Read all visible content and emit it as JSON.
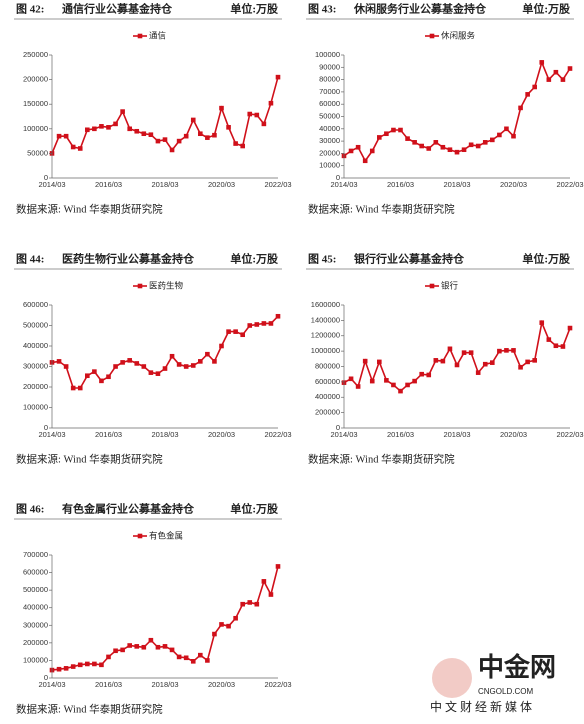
{
  "chart_data": [
    {
      "type": "line",
      "figure": "图 42:",
      "title": "通信行业公募基金持仓",
      "unit": "单位:万股",
      "source": "数据来源: Wind 华泰期货研究院",
      "legend": "top",
      "categories": [
        "2014/03",
        null,
        null,
        null,
        null,
        null,
        null,
        null,
        "2016/03",
        null,
        null,
        null,
        null,
        null,
        null,
        null,
        "2018/03",
        null,
        null,
        null,
        null,
        null,
        null,
        null,
        "2020/03",
        null,
        null,
        null,
        null,
        null,
        null,
        null,
        "2022/03"
      ],
      "series": [
        {
          "name": "通信",
          "color": "#d0101a",
          "values": [
            50000,
            85000,
            85000,
            63000,
            60000,
            98000,
            100000,
            105000,
            103000,
            110000,
            135000,
            100000,
            95000,
            90000,
            88000,
            75000,
            78000,
            57000,
            75000,
            85000,
            118000,
            90000,
            82000,
            87000,
            142000,
            103000,
            70000,
            65000,
            130000,
            128000,
            110000,
            152000,
            205000
          ]
        }
      ],
      "ylim": [
        0,
        250000
      ],
      "yticks": [
        0,
        50000,
        100000,
        150000,
        200000,
        250000
      ]
    },
    {
      "type": "line",
      "figure": "图 43:",
      "title": "休闲服务行业公募基金持仓",
      "unit": "单位:万股",
      "source": "数据来源: Wind 华泰期货研究院",
      "legend": "top",
      "categories": [
        "2014/03",
        null,
        null,
        null,
        null,
        null,
        null,
        null,
        "2016/03",
        null,
        null,
        null,
        null,
        null,
        null,
        null,
        "2018/03",
        null,
        null,
        null,
        null,
        null,
        null,
        null,
        "2020/03",
        null,
        null,
        null,
        null,
        null,
        null,
        null,
        "2022/03"
      ],
      "series": [
        {
          "name": "休闲服务",
          "color": "#d0101a",
          "values": [
            18000,
            22000,
            25000,
            14000,
            22000,
            33000,
            36000,
            39000,
            39000,
            32000,
            29000,
            26000,
            24000,
            29000,
            25000,
            23000,
            21000,
            23000,
            27000,
            26000,
            29000,
            31000,
            35000,
            40000,
            34000,
            57000,
            68000,
            74000,
            94000,
            80000,
            86000,
            80000,
            89000
          ]
        }
      ],
      "ylim": [
        0,
        100000
      ],
      "yticks": [
        0,
        10000,
        20000,
        30000,
        40000,
        50000,
        60000,
        70000,
        80000,
        90000,
        100000
      ]
    },
    {
      "type": "line",
      "figure": "图 44:",
      "title": "医药生物行业公募基金持仓",
      "unit": "单位:万股",
      "source": "数据来源: Wind 华泰期货研究院",
      "legend": "top",
      "categories": [
        "2014/03",
        null,
        null,
        null,
        null,
        null,
        null,
        null,
        "2016/03",
        null,
        null,
        null,
        null,
        null,
        null,
        null,
        "2018/03",
        null,
        null,
        null,
        null,
        null,
        null,
        null,
        "2020/03",
        null,
        null,
        null,
        null,
        null,
        null,
        null,
        "2022/03"
      ],
      "series": [
        {
          "name": "医药生物",
          "color": "#d0101a",
          "values": [
            320000,
            325000,
            300000,
            195000,
            195000,
            255000,
            275000,
            230000,
            250000,
            300000,
            320000,
            330000,
            315000,
            300000,
            270000,
            265000,
            290000,
            350000,
            310000,
            300000,
            305000,
            325000,
            360000,
            325000,
            400000,
            470000,
            470000,
            455000,
            500000,
            505000,
            510000,
            510000,
            545000
          ]
        }
      ],
      "ylim": [
        0,
        600000
      ],
      "yticks": [
        0,
        100000,
        200000,
        300000,
        400000,
        500000,
        600000
      ]
    },
    {
      "type": "line",
      "figure": "图 45:",
      "title": "银行行业公募基金持仓",
      "unit": "单位:万股",
      "source": "数据来源: Wind 华泰期货研究院",
      "legend": "top",
      "categories": [
        "2014/03",
        null,
        null,
        null,
        null,
        null,
        null,
        null,
        "2016/03",
        null,
        null,
        null,
        null,
        null,
        null,
        null,
        "2018/03",
        null,
        null,
        null,
        null,
        null,
        null,
        null,
        "2020/03",
        null,
        null,
        null,
        null,
        null,
        null,
        null,
        "2022/03"
      ],
      "series": [
        {
          "name": "银行",
          "color": "#d0101a",
          "values": [
            590000,
            640000,
            540000,
            870000,
            610000,
            860000,
            620000,
            560000,
            480000,
            560000,
            610000,
            700000,
            690000,
            880000,
            870000,
            1030000,
            820000,
            980000,
            980000,
            720000,
            830000,
            850000,
            1000000,
            1010000,
            1010000,
            790000,
            860000,
            880000,
            1370000,
            1150000,
            1070000,
            1060000,
            1300000
          ]
        }
      ],
      "ylim": [
        0,
        1600000
      ],
      "yticks": [
        0,
        200000,
        400000,
        600000,
        800000,
        1000000,
        1200000,
        1400000,
        1600000
      ]
    },
    {
      "type": "line",
      "figure": "图 46:",
      "title": "有色金属行业公募基金持仓",
      "unit": "单位:万股",
      "source": "数据来源: Wind 华泰期货研究院",
      "legend": "top",
      "categories": [
        "2014/03",
        null,
        null,
        null,
        null,
        null,
        null,
        null,
        "2016/03",
        null,
        null,
        null,
        null,
        null,
        null,
        null,
        "2018/03",
        null,
        null,
        null,
        null,
        null,
        null,
        null,
        "2020/03",
        null,
        null,
        null,
        null,
        null,
        null,
        null,
        "2022/03"
      ],
      "series": [
        {
          "name": "有色金属",
          "color": "#d0101a",
          "values": [
            45000,
            50000,
            55000,
            65000,
            75000,
            80000,
            80000,
            75000,
            120000,
            155000,
            160000,
            185000,
            180000,
            175000,
            215000,
            175000,
            180000,
            160000,
            120000,
            115000,
            95000,
            130000,
            100000,
            250000,
            305000,
            295000,
            340000,
            420000,
            430000,
            420000,
            550000,
            475000,
            635000
          ]
        }
      ],
      "ylim": [
        0,
        700000
      ],
      "yticks": [
        0,
        100000,
        200000,
        300000,
        400000,
        500000,
        600000,
        700000
      ]
    }
  ],
  "watermark": {
    "logo": "中金网",
    "site": "CNGOLD.COM",
    "slogan": "中 文 财 经 新 媒 体"
  }
}
